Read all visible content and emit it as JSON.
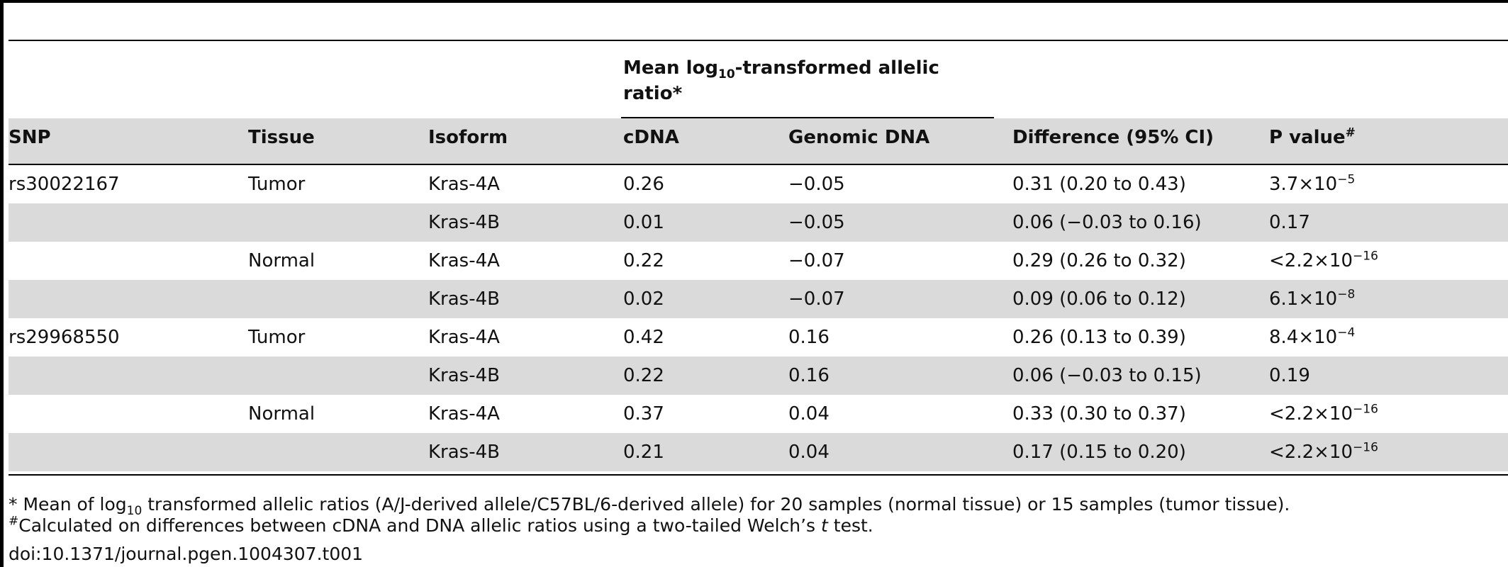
{
  "group_header": {
    "line1_pre": "Mean log",
    "line1_sub": "10",
    "line1_post": "-transformed allelic",
    "line2": "ratio*"
  },
  "columns": [
    {
      "label": "SNP",
      "sup": ""
    },
    {
      "label": "Tissue",
      "sup": ""
    },
    {
      "label": "Isoform",
      "sup": ""
    },
    {
      "label": "cDNA",
      "sup": ""
    },
    {
      "label": "Genomic DNA",
      "sup": ""
    },
    {
      "label": "Difference (95% CI)",
      "sup": ""
    },
    {
      "label": "P value",
      "sup": "#"
    }
  ],
  "rows": [
    {
      "snp": "rs30022167",
      "tissue": "Tumor",
      "isoform": "Kras-4A",
      "cdna": "0.26",
      "genomic": "−0.05",
      "diff": "0.31 (0.20 to 0.43)",
      "p_base": "3.7×10",
      "p_exp": "−5"
    },
    {
      "snp": "",
      "tissue": "",
      "isoform": "Kras-4B",
      "cdna": "0.01",
      "genomic": "−0.05",
      "diff": "0.06 (−0.03 to 0.16)",
      "p_base": "0.17",
      "p_exp": ""
    },
    {
      "snp": "",
      "tissue": "Normal",
      "isoform": "Kras-4A",
      "cdna": "0.22",
      "genomic": "−0.07",
      "diff": "0.29 (0.26 to 0.32)",
      "p_base": "<2.2×10",
      "p_exp": "−16"
    },
    {
      "snp": "",
      "tissue": "",
      "isoform": "Kras-4B",
      "cdna": "0.02",
      "genomic": "−0.07",
      "diff": "0.09 (0.06 to 0.12)",
      "p_base": "6.1×10",
      "p_exp": "−8"
    },
    {
      "snp": "rs29968550",
      "tissue": "Tumor",
      "isoform": "Kras-4A",
      "cdna": "0.42",
      "genomic": "0.16",
      "diff": "0.26 (0.13 to 0.39)",
      "p_base": "8.4×10",
      "p_exp": "−4"
    },
    {
      "snp": "",
      "tissue": "",
      "isoform": "Kras-4B",
      "cdna": "0.22",
      "genomic": "0.16",
      "diff": "0.06 (−0.03 to 0.15)",
      "p_base": "0.19",
      "p_exp": ""
    },
    {
      "snp": "",
      "tissue": "Normal",
      "isoform": "Kras-4A",
      "cdna": "0.37",
      "genomic": "0.04",
      "diff": "0.33 (0.30 to 0.37)",
      "p_base": "<2.2×10",
      "p_exp": "−16"
    },
    {
      "snp": "",
      "tissue": "",
      "isoform": "Kras-4B",
      "cdna": "0.21",
      "genomic": "0.04",
      "diff": "0.17 (0.15 to 0.20)",
      "p_base": "<2.2×10",
      "p_exp": "−16"
    }
  ],
  "footnotes": {
    "note1_pre": "* Mean of log",
    "note1_sub": "10",
    "note1_post": " transformed allelic ratios (A/J-derived allele/C57BL/6-derived allele) for 20 samples (normal tissue) or 15 samples (tumor tissue).",
    "note2_sup": "#",
    "note2_pre": "Calculated on differences between cDNA and DNA allelic ratios using a two-tailed Welch’s ",
    "note2_italic": "t",
    "note2_post": " test.",
    "doi": "doi:10.1371/journal.pgen.1004307.t001"
  }
}
